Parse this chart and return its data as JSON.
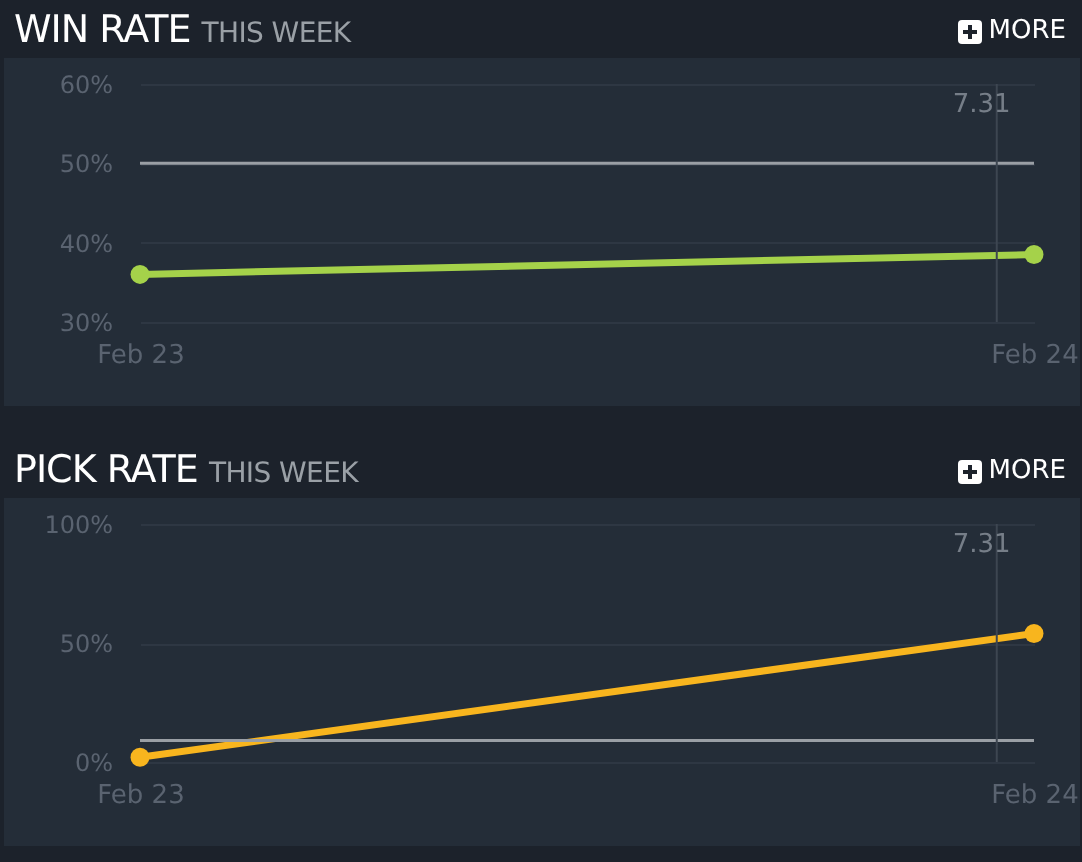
{
  "chart_data": [
    {
      "type": "line",
      "title": "WIN RATE",
      "subtitle": "THIS WEEK",
      "annotations": [
        "MORE"
      ],
      "x": [
        "--02-23",
        "--02-24"
      ],
      "series": [
        {
          "color": "#a5d24a",
          "values": [
            36,
            38.5
          ]
        }
      ],
      "xlim": [
        "--02-23",
        "--02-24"
      ],
      "xticks": [
        {
          "value": "--02-23",
          "label": "Feb 23"
        },
        {
          "value": "--02-24",
          "label": "Feb 24"
        }
      ],
      "ylim": [
        30,
        60
      ],
      "yticks": [
        {
          "value": 30,
          "label": "30%"
        },
        {
          "value": 40,
          "label": "40%"
        },
        {
          "value": 50,
          "label": "50%"
        },
        {
          "value": 60,
          "label": "60%"
        }
      ],
      "ref_lines": [
        {
          "axis": "y",
          "value": 50,
          "color": "#9a9fa5"
        },
        {
          "axis": "x",
          "value": "--02-23T23:00",
          "label": "7.31",
          "color": "#3d4651"
        }
      ],
      "grid": "y",
      "marker": "circle",
      "line_style": "solid"
    },
    {
      "type": "line",
      "title": "PICK RATE",
      "subtitle": "THIS WEEK",
      "annotations": [
        "MORE"
      ],
      "x": [
        "--02-23",
        "--02-24"
      ],
      "series": [
        {
          "color": "#f8b51e",
          "values": [
            2,
            54
          ]
        }
      ],
      "xlim": [
        "--02-23",
        "--02-24"
      ],
      "xticks": [
        {
          "value": "--02-23",
          "label": "Feb 23"
        },
        {
          "value": "--02-24",
          "label": "Feb 24"
        }
      ],
      "ylim": [
        0,
        100
      ],
      "yticks": [
        {
          "value": 0,
          "label": "0%"
        },
        {
          "value": 50,
          "label": "50%"
        },
        {
          "value": 100,
          "label": "100%"
        }
      ],
      "ref_lines": [
        {
          "axis": "y",
          "value": 9,
          "color": "#9a9fa5"
        },
        {
          "axis": "x",
          "value": "--02-23T23:00",
          "label": "7.31",
          "color": "#3d4651"
        }
      ],
      "grid": "y",
      "marker": "circle",
      "line_style": "solid"
    }
  ]
}
